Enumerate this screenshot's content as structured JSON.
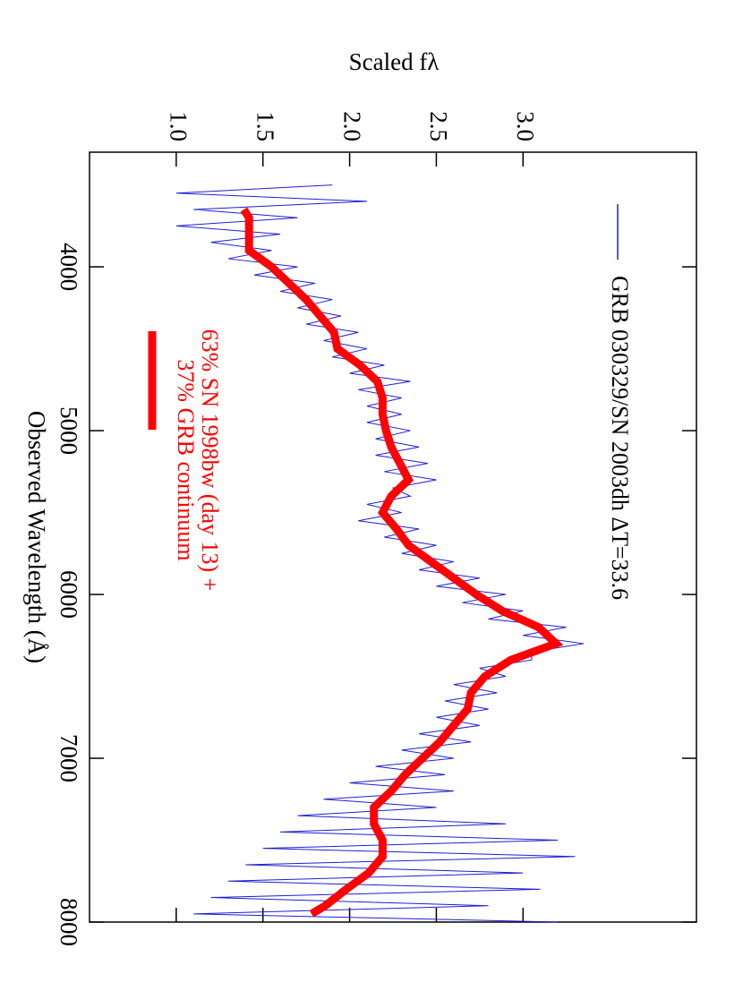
{
  "chart_data": {
    "type": "line",
    "x_label": "Observed Wavelength (Å)",
    "y_label": "Scaled fλ",
    "xlim": [
      3300,
      8000
    ],
    "ylim": [
      0.5,
      4.0
    ],
    "xticks": [
      4000,
      5000,
      6000,
      7000,
      8000
    ],
    "yticks": [
      {
        "value": 1.0,
        "label": "1.0"
      },
      1.5,
      {
        "value": 2.0,
        "label": "2.0"
      },
      2.5,
      {
        "value": 3.0,
        "label": "3.0"
      }
    ],
    "series": [
      {
        "name": "GRB 030329/SN 2003dh ΔT=33.6",
        "color": "#1f1fd0",
        "x": [
          3500,
          3550,
          3600,
          3650,
          3700,
          3750,
          3800,
          3850,
          3900,
          3950,
          4000,
          4050,
          4100,
          4150,
          4200,
          4250,
          4300,
          4350,
          4400,
          4450,
          4500,
          4550,
          4600,
          4650,
          4700,
          4750,
          4800,
          4850,
          4900,
          4950,
          5000,
          5050,
          5100,
          5150,
          5200,
          5250,
          5300,
          5350,
          5400,
          5450,
          5500,
          5550,
          5600,
          5650,
          5700,
          5750,
          5800,
          5850,
          5900,
          5950,
          6000,
          6050,
          6100,
          6150,
          6200,
          6250,
          6300,
          6350,
          6400,
          6450,
          6500,
          6550,
          6600,
          6650,
          6700,
          6750,
          6800,
          6850,
          6900,
          6950,
          7000,
          7050,
          7100,
          7150,
          7200,
          7250,
          7300,
          7350,
          7400,
          7450,
          7500,
          7550,
          7600,
          7650,
          7700,
          7750,
          7800,
          7850,
          7900,
          7950,
          8000
        ],
        "values": [
          1.9,
          1.0,
          2.1,
          1.1,
          1.7,
          1.0,
          1.6,
          1.2,
          1.55,
          1.3,
          1.7,
          1.45,
          1.8,
          1.6,
          1.9,
          1.7,
          1.95,
          1.75,
          2.05,
          1.85,
          2.1,
          1.9,
          2.2,
          2.0,
          2.35,
          2.05,
          2.3,
          2.1,
          2.3,
          2.1,
          2.35,
          2.15,
          2.4,
          2.15,
          2.45,
          2.2,
          2.5,
          2.25,
          2.35,
          2.1,
          2.3,
          2.05,
          2.4,
          2.2,
          2.5,
          2.3,
          2.6,
          2.4,
          2.75,
          2.5,
          2.9,
          2.65,
          3.0,
          2.8,
          3.25,
          3.0,
          3.35,
          3.05,
          3.05,
          2.75,
          2.9,
          2.6,
          2.85,
          2.55,
          2.8,
          2.5,
          2.75,
          2.4,
          2.7,
          2.3,
          2.6,
          2.15,
          2.55,
          2.0,
          2.6,
          1.85,
          2.5,
          1.7,
          2.9,
          1.6,
          3.2,
          1.5,
          3.3,
          1.4,
          3.0,
          1.3,
          3.1,
          1.2,
          2.8,
          1.1,
          3.2
        ]
      },
      {
        "name": "63% SN 1998bw (day 13) + 37% GRB continuum",
        "color": "#ff0000",
        "x": [
          3650,
          3700,
          3800,
          3900,
          4000,
          4100,
          4200,
          4300,
          4400,
          4500,
          4600,
          4700,
          4800,
          4900,
          5000,
          5100,
          5200,
          5300,
          5400,
          5500,
          5600,
          5700,
          5800,
          5900,
          6000,
          6100,
          6200,
          6300,
          6400,
          6500,
          6600,
          6700,
          6800,
          6900,
          7000,
          7100,
          7200,
          7300,
          7400,
          7500,
          7600,
          7700,
          7800,
          7900,
          7950
        ],
        "values": [
          1.39,
          1.42,
          1.42,
          1.42,
          1.55,
          1.65,
          1.75,
          1.83,
          1.91,
          1.93,
          2.06,
          2.16,
          2.19,
          2.19,
          2.21,
          2.24,
          2.29,
          2.34,
          2.24,
          2.19,
          2.27,
          2.34,
          2.47,
          2.6,
          2.73,
          2.88,
          3.09,
          3.19,
          2.93,
          2.78,
          2.7,
          2.68,
          2.6,
          2.52,
          2.42,
          2.32,
          2.24,
          2.14,
          2.14,
          2.19,
          2.19,
          2.11,
          1.98,
          1.86,
          1.78
        ]
      }
    ]
  }
}
